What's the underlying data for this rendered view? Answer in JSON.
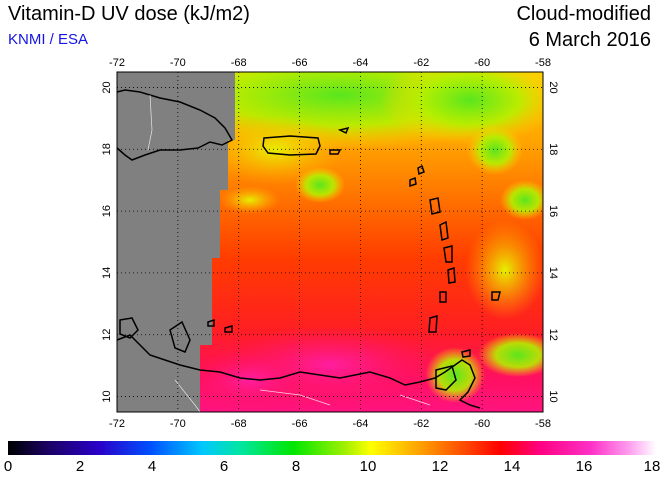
{
  "header": {
    "title": "Vitamin-D UV dose (kJ/m2)",
    "credit": "KNMI / ESA",
    "mode": "Cloud-modified",
    "date": "6 March 2016"
  },
  "map": {
    "lon_range": [
      -72,
      -58
    ],
    "lat_range": [
      9.5,
      20.5
    ],
    "lon_ticks": [
      "-72",
      "-70",
      "-68",
      "-66",
      "-64",
      "-62",
      "-60",
      "-58"
    ],
    "lat_ticks": [
      "10",
      "12",
      "14",
      "16",
      "18",
      "20"
    ],
    "no_data_color": "#808080",
    "grid": "dotted"
  },
  "colorbar": {
    "min": 0,
    "max": 18,
    "labels": [
      "0",
      "2",
      "4",
      "6",
      "8",
      "10",
      "12",
      "14",
      "16",
      "18"
    ]
  }
}
